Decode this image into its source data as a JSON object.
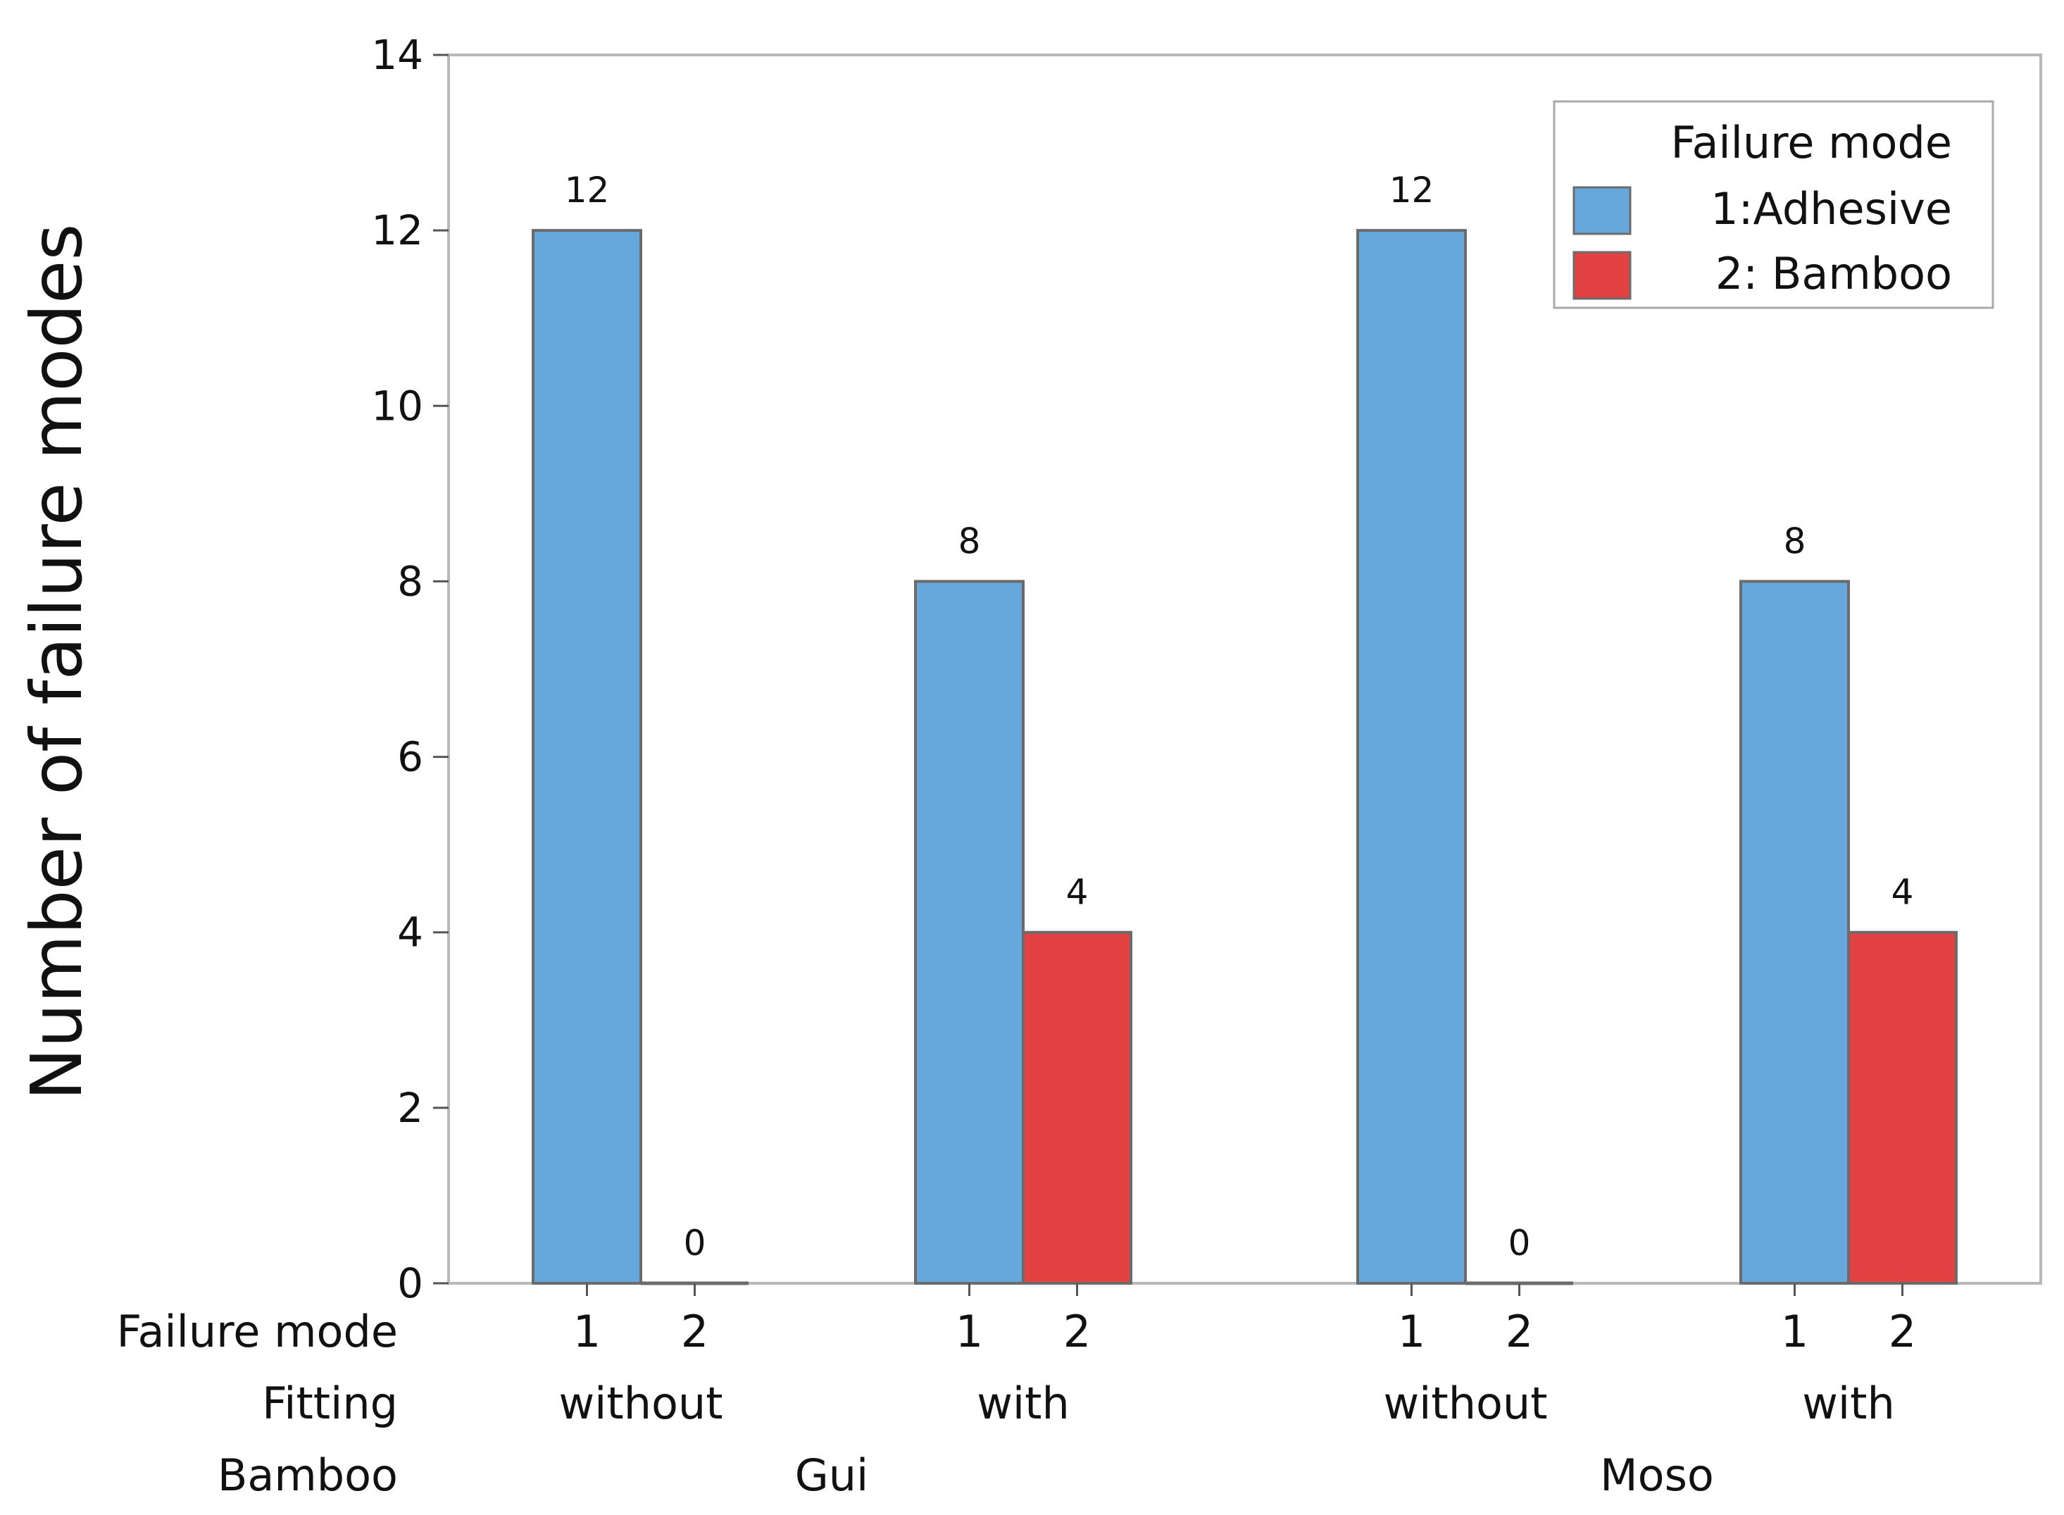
{
  "chart_data": {
    "type": "bar",
    "title": "",
    "xlabel": "",
    "ylabel": "Number of failure modes",
    "ylim": [
      0,
      14
    ],
    "yticks": [
      0,
      2,
      4,
      6,
      8,
      10,
      12,
      14
    ],
    "grid": false,
    "legend": {
      "title": "Failure mode",
      "placement": "top-right",
      "entries": [
        {
          "label": "1:Adhesive",
          "color": "#66a8dc"
        },
        {
          "label": "2: Bamboo",
          "color": "#e34242"
        }
      ]
    },
    "row_titles": {
      "failure_mode": "Failure mode",
      "fitting": "Fitting",
      "bamboo": "Bamboo"
    },
    "groups": [
      {
        "bamboo": "Gui",
        "fittings": [
          {
            "fitting": "without",
            "bars": [
              {
                "mode": "1",
                "value": 12,
                "label": "12"
              },
              {
                "mode": "2",
                "value": 0,
                "label": "0"
              }
            ]
          },
          {
            "fitting": "with",
            "bars": [
              {
                "mode": "1",
                "value": 8,
                "label": "8"
              },
              {
                "mode": "2",
                "value": 4,
                "label": "4"
              }
            ]
          }
        ]
      },
      {
        "bamboo": "Moso",
        "fittings": [
          {
            "fitting": "without",
            "bars": [
              {
                "mode": "1",
                "value": 12,
                "label": "12"
              },
              {
                "mode": "2",
                "value": 0,
                "label": "0"
              }
            ]
          },
          {
            "fitting": "with",
            "bars": [
              {
                "mode": "1",
                "value": 8,
                "label": "8"
              },
              {
                "mode": "2",
                "value": 4,
                "label": "4"
              }
            ]
          }
        ]
      }
    ],
    "colors": {
      "1": "#66a8dc",
      "2": "#e34242",
      "outline": "#6b6b6b",
      "frame": "#b8b8b8"
    }
  }
}
